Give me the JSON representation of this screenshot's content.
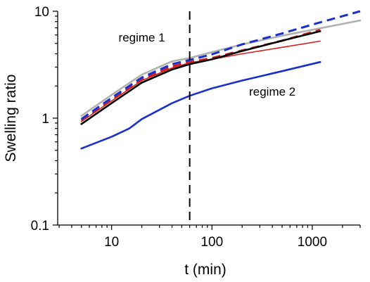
{
  "chart_data": {
    "type": "line",
    "title": "",
    "xlabel": "t (min)",
    "ylabel": "Swelling ratio",
    "xscale": "log",
    "yscale": "log",
    "xlim": [
      2.9,
      3000
    ],
    "ylim": [
      0.1,
      10
    ],
    "grid": false,
    "legend": "none",
    "x_ticks": [
      {
        "value": 10,
        "label": "10"
      },
      {
        "value": 100,
        "label": "100"
      },
      {
        "value": 1000,
        "label": "1000"
      }
    ],
    "y_ticks": [
      {
        "value": 0.1,
        "label": "0.1"
      },
      {
        "value": 1,
        "label": "1"
      },
      {
        "value": 10,
        "label": "10"
      }
    ],
    "vertical_line": {
      "x": 60,
      "style": "dashed",
      "color": "#000000"
    },
    "annotations": [
      {
        "text": "regime 1",
        "x": 20,
        "y": 5.2
      },
      {
        "text": "regime 2",
        "x": 400,
        "y": 1.62
      }
    ],
    "series": [
      {
        "color": "#b0b0b0",
        "style": "solid",
        "x": [
          5,
          10,
          20,
          40,
          60,
          100,
          200,
          500,
          1000,
          3000
        ],
        "y": [
          1.05,
          1.65,
          2.55,
          3.4,
          3.65,
          4.15,
          4.9,
          5.9,
          6.7,
          8.2
        ]
      },
      {
        "color": "#d02020",
        "style": "solid",
        "x": [
          5,
          10,
          20,
          40,
          60,
          100,
          200,
          500,
          1200
        ],
        "y": [
          0.93,
          1.45,
          2.25,
          2.95,
          3.3,
          3.55,
          4.0,
          4.6,
          5.25
        ]
      },
      {
        "color": "#d02020",
        "style": "dashed",
        "x": [
          5,
          10,
          20,
          40,
          60,
          100,
          200,
          500,
          1200
        ],
        "y": [
          0.95,
          1.48,
          2.3,
          3.05,
          3.35,
          3.65,
          4.3,
          5.3,
          6.7
        ]
      },
      {
        "color": "#000000",
        "style": "solid",
        "x": [
          5,
          10,
          20,
          40,
          60,
          100,
          200,
          500,
          1200
        ],
        "y": [
          0.88,
          1.38,
          2.15,
          2.85,
          3.2,
          3.55,
          4.25,
          5.3,
          6.5
        ]
      },
      {
        "color": "#1a2fd0",
        "style": "dashed",
        "x": [
          5,
          10,
          20,
          40,
          60,
          100,
          200,
          500,
          1000,
          3000
        ],
        "y": [
          0.98,
          1.55,
          2.4,
          3.2,
          3.5,
          3.95,
          4.9,
          6.2,
          7.5,
          10.0
        ]
      },
      {
        "color": "#1a2fd0",
        "style": "solid",
        "x": [
          5,
          10,
          15,
          20,
          40,
          60,
          100,
          200,
          500,
          1200
        ],
        "y": [
          0.52,
          0.67,
          0.8,
          0.98,
          1.38,
          1.62,
          1.9,
          2.25,
          2.75,
          3.35
        ]
      }
    ]
  }
}
